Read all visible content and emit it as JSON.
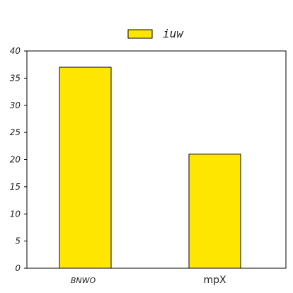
{
  "chart_data": {
    "type": "bar",
    "categories": [
      "BNWO",
      "mpX"
    ],
    "series": [
      {
        "name": "iuw",
        "values": [
          37,
          21
        ]
      }
    ],
    "ylim": [
      0,
      40
    ],
    "yticks": [
      0,
      5,
      10,
      15,
      20,
      25,
      30,
      35,
      40
    ],
    "grid": false,
    "legend_position": "top-center",
    "colors": {
      "bar_fill": "#ffe600",
      "bar_stroke": "#000000",
      "axis": "#000000"
    }
  }
}
